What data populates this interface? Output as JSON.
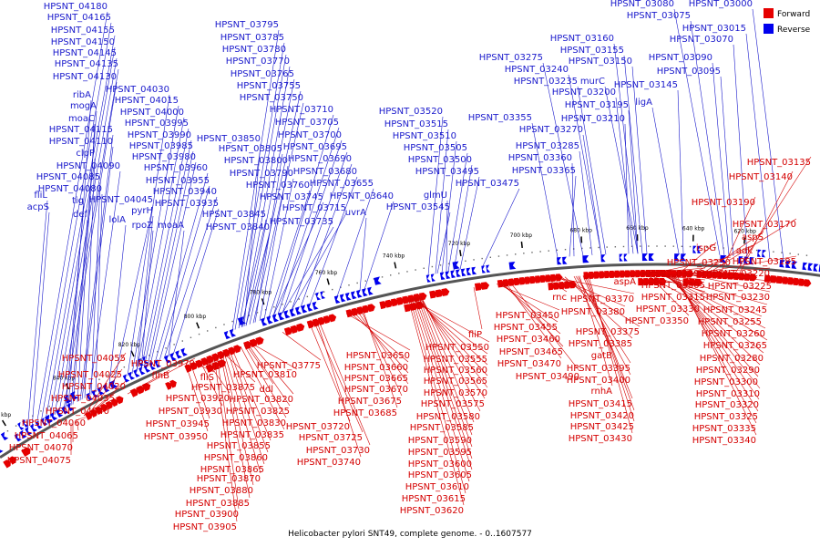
{
  "colors": {
    "forward": "#e60000",
    "reverse": "#0000ee",
    "backbone": "#555555",
    "label_forward": "#d40000",
    "label_reverse": "#1a1acc"
  },
  "legend": {
    "forward_label": "Forward",
    "reverse_label": "Reverse"
  },
  "caption": "Helicobacter pylori SNT49, complete genome. - 0..1607577",
  "scale_ticks": [
    "860 kbp",
    "840 kbp",
    "820 kbp",
    "800 kbp",
    "780 kbp",
    "760 kbp",
    "740 kbp",
    "720 kbp",
    "700 kbp",
    "680 kbp",
    "660 kbp",
    "640 kbp",
    "620 kbp"
  ],
  "reverse_labels": [
    "HPSNT_04180",
    "HPSNT_04165",
    "HPSNT_04155",
    "HPSNT_04150",
    "HPSNT_04145",
    "HPSNT_04135",
    "HPSNT_04130",
    "ribA",
    "mogA",
    "moaC",
    "HPSNT_04115",
    "HPSNT_04110",
    "clpP",
    "HPSNT_04090",
    "HPSNT_04085",
    "HPSNT_04080",
    "fliL",
    "acpS",
    "tig",
    "def",
    "HPSNT_04045",
    "lolA",
    "HPSNT_04030",
    "HPSNT_04015",
    "HPSNT_04000",
    "HPSNT_03995",
    "HPSNT_03990",
    "HPSNT_03985",
    "HPSNT_03980",
    "HPSNT_03960",
    "HPSNT_03955",
    "HPSNT_03940",
    "HPSNT_03935",
    "pyrH",
    "rpoZ",
    "moaA",
    "HPSNT_03795",
    "HPSNT_03785",
    "HPSNT_03780",
    "HPSNT_03770",
    "HPSNT_03765",
    "HPSNT_03755",
    "HPSNT_03750",
    "HPSNT_03710",
    "HPSNT_03705",
    "HPSNT_03700",
    "HPSNT_03695",
    "HPSNT_03690",
    "HPSNT_03680",
    "HPSNT_03655",
    "HPSNT_03640",
    "HPSNT_03850",
    "HPSNT_03805",
    "HPSNT_03800",
    "HPSNT_03790",
    "HPSNT_03760",
    "HPSNT_03745",
    "HPSNT_03715",
    "HPSNT_03735",
    "HPSNT_03845",
    "HPSNT_03840",
    "uvrA",
    "HPSNT_03520",
    "HPSNT_03515",
    "HPSNT_03510",
    "HPSNT_03505",
    "HPSNT_03500",
    "HPSNT_03495",
    "HPSNT_03475",
    "glmU",
    "HPSNT_03545",
    "HPSNT_03355",
    "HPSNT_03275",
    "HPSNT_03240",
    "HPSNT_03235",
    "HPSNT_03270",
    "HPSNT_03285",
    "HPSNT_03360",
    "HPSNT_03365",
    "HPSNT_03160",
    "HPSNT_03155",
    "HPSNT_03150",
    "murC",
    "HPSNT_03200",
    "HPSNT_03195",
    "HPSNT_03210",
    "ligA",
    "HPSNT_03145",
    "HPSNT_03080",
    "HPSNT_03075",
    "HPSNT_03090",
    "HPSNT_03095",
    "HPSNT_03000",
    "HPSNT_03015",
    "HPSNT_03070"
  ],
  "forward_labels": [
    "HPSNT_04055",
    "HPSNT_04025",
    "HPSNT_04020",
    "HPSNT_04035",
    "HPSNT_04040",
    "HPSNT_04060",
    "HPSNT_04065",
    "HPSNT_04070",
    "HPSNT_04075",
    "HPSNT_03970",
    "flhB",
    "fliD",
    "fliS",
    "HPSNT_03920",
    "HPSNT_03930",
    "HPSNT_03945",
    "HPSNT_03950",
    "HPSNT_03875",
    "HPSNT_03810",
    "ddl",
    "HPSNT_03820",
    "HPSNT_03825",
    "HPSNT_03830",
    "HPSNT_03835",
    "HPSNT_03855",
    "HPSNT_03860",
    "HPSNT_03865",
    "HPSNT_03870",
    "HPSNT_03880",
    "HPSNT_03885",
    "HPSNT_03900",
    "HPSNT_03905",
    "HPSNT_03775",
    "HPSNT_03720",
    "HPSNT_03725",
    "HPSNT_03730",
    "HPSNT_03740",
    "HPSNT_03650",
    "HPSNT_03660",
    "HPSNT_03665",
    "HPSNT_03670",
    "HPSNT_03675",
    "HPSNT_03685",
    "HPSNT_03550",
    "HPSNT_03555",
    "HPSNT_03560",
    "HPSNT_03565",
    "HPSNT_03570",
    "HPSNT_03575",
    "HPSNT_03580",
    "HPSNT_03585",
    "HPSNT_03590",
    "HPSNT_03595",
    "HPSNT_03600",
    "HPSNT_03605",
    "HPSNT_03610",
    "HPSNT_03615",
    "HPSNT_03620",
    "fliP",
    "HPSNT_03450",
    "HPSNT_03455",
    "HPSNT_03460",
    "HPSNT_03465",
    "HPSNT_03470",
    "HPSNT_03490",
    "rnc",
    "HPSNT_03370",
    "HPSNT_03380",
    "HPSNT_03375",
    "HPSNT_03385",
    "gatB",
    "HPSNT_03395",
    "HPSNT_03400",
    "rnhA",
    "HPSNT_03415",
    "HPSNT_03420",
    "HPSNT_03425",
    "HPSNT_03430",
    "aspA",
    "HPSNT_03250",
    "HPSNT_03295",
    "HPSNT_03305",
    "HPSNT_03315",
    "HPSNT_03330",
    "HPSNT_03350",
    "HPSNT_03245",
    "HPSNT_03255",
    "HPSNT_03260",
    "HPSNT_03265",
    "HPSNT_03280",
    "HPSNT_03290",
    "HPSNT_03300",
    "HPSNT_03310",
    "HPSNT_03320",
    "HPSNT_03325",
    "HPSNT_03335",
    "HPSNT_03340",
    "ispG",
    "HPSNT_03220",
    "HPSNT_03225",
    "HPSNT_03230",
    "HPSNT_03185",
    "adk",
    "aspS",
    "HPSNT_03170",
    "HPSNT_03190",
    "HPSNT_03135",
    "HPSNT_03140"
  ]
}
